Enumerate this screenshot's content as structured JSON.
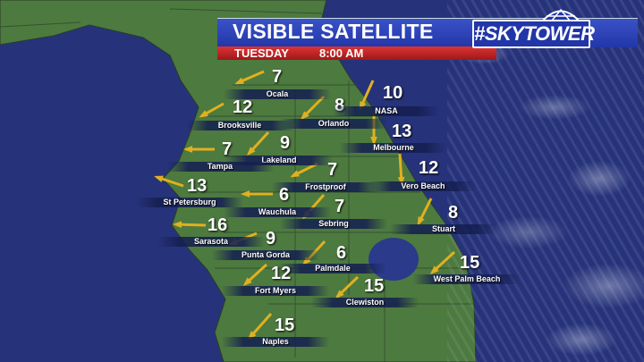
{
  "header": {
    "title": "VISIBLE SATELLITE",
    "day": "TUESDAY",
    "time": "8:00 AM",
    "logo_text": "#SKYTOWER"
  },
  "colors": {
    "ocean": "#26337a",
    "land": "#4d7a3f",
    "arrow": "#e0b020",
    "title_bar": "#2a40b8",
    "sub_bar": "#c02020"
  },
  "stations": [
    {
      "name": "Ocala",
      "speed": "7",
      "toward": "WSW"
    },
    {
      "name": "Brooksville",
      "speed": "12",
      "toward": "SW"
    },
    {
      "name": "Orlando",
      "speed": "8",
      "toward": "SW"
    },
    {
      "name": "NASA",
      "speed": "10",
      "toward": "SSW"
    },
    {
      "name": "Melbourne",
      "speed": "13",
      "toward": "S"
    },
    {
      "name": "Lakeland",
      "speed": "9",
      "toward": "SW"
    },
    {
      "name": "Tampa",
      "speed": "7",
      "toward": "W"
    },
    {
      "name": "Vero Beach",
      "speed": "12",
      "toward": "S"
    },
    {
      "name": "Frostproof",
      "speed": "7",
      "toward": "WSW"
    },
    {
      "name": "St Petersburg",
      "speed": "13",
      "toward": "WNW"
    },
    {
      "name": "Wauchula",
      "speed": "6",
      "toward": "W"
    },
    {
      "name": "Sebring",
      "speed": "7",
      "toward": "SW"
    },
    {
      "name": "Stuart",
      "speed": "8",
      "toward": "SSW"
    },
    {
      "name": "Sarasota",
      "speed": "16",
      "toward": "W"
    },
    {
      "name": "Punta Gorda",
      "speed": "9",
      "toward": "WSW"
    },
    {
      "name": "Palmdale",
      "speed": "6",
      "toward": "SW"
    },
    {
      "name": "Fort Myers",
      "speed": "12",
      "toward": "SW"
    },
    {
      "name": "West Palm Beach",
      "speed": "15",
      "toward": "SW"
    },
    {
      "name": "Clewiston",
      "speed": "15",
      "toward": "SW"
    },
    {
      "name": "Naples",
      "speed": "15",
      "toward": "SW"
    }
  ]
}
